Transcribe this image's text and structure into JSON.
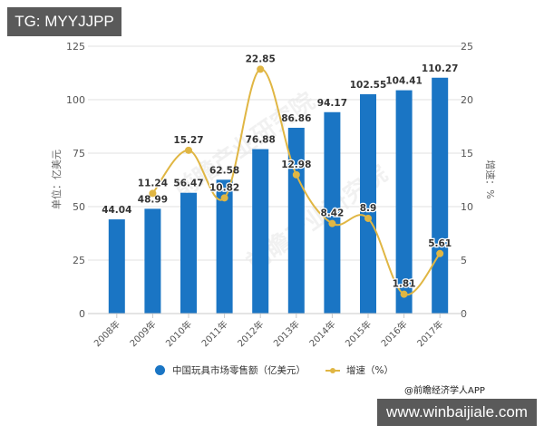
{
  "overlays": {
    "top_badge": "TG: MYYJJPP",
    "bottom_badge": "www.winbaijiale.com",
    "credit": "@前瞻经济学人APP",
    "watermark": "前瞻产业研究院"
  },
  "legend": {
    "bar_label": "中国玩具市场零售额（亿美元）",
    "line_label": "增速（%）"
  },
  "axes": {
    "left_label": "单位：亿美元",
    "right_label": "增速：%",
    "left_ticks": [
      "0",
      "25",
      "50",
      "75",
      "100",
      "125"
    ],
    "right_ticks": [
      "0",
      "5",
      "10",
      "15",
      "20",
      "25"
    ]
  },
  "colors": {
    "bar": "#1a75c4",
    "line": "#e0b643",
    "grid": "#e2e2e2"
  },
  "chart_data": {
    "type": "bar",
    "title": "",
    "categories": [
      "2008年",
      "2009年",
      "2010年",
      "2011年",
      "2012年",
      "2013年",
      "2014年",
      "2015年",
      "2016年",
      "2017年"
    ],
    "series": [
      {
        "name": "中国玩具市场零售额（亿美元）",
        "type": "bar",
        "axis": "left",
        "values": [
          44.04,
          48.99,
          56.47,
          62.58,
          76.88,
          86.86,
          94.17,
          102.55,
          104.41,
          110.27
        ]
      },
      {
        "name": "增速（%）",
        "type": "line",
        "axis": "right",
        "values": [
          null,
          11.24,
          15.27,
          10.82,
          22.85,
          12.98,
          8.42,
          8.9,
          1.81,
          5.61
        ]
      }
    ],
    "xlabel": "",
    "ylabel": "单位：亿美元",
    "ylabel_right": "增速：%",
    "ylim": [
      0,
      125
    ],
    "ylim_right": [
      0,
      25
    ],
    "grid": true,
    "legend_position": "bottom"
  }
}
